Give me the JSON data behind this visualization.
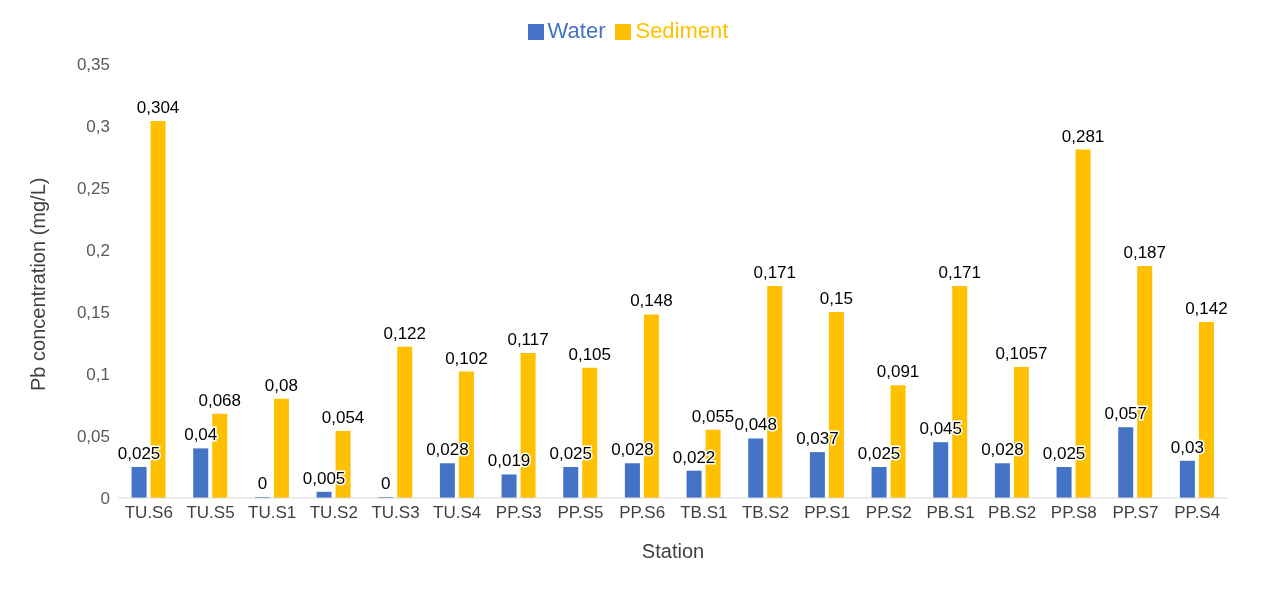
{
  "chart_data": {
    "type": "bar",
    "xlabel": "Station",
    "ylabel": "Pb concentration  (mg/L)",
    "categories": [
      "TU.S6",
      "TU.S5",
      "TU.S1",
      "TU.S2",
      "TU.S3",
      "TU.S4",
      "PP.S3",
      "PP.S5",
      "PP.S6",
      "TB.S1",
      "TB.S2",
      "PP.S1",
      "PP.S2",
      "PB.S1",
      "PB.S2",
      "PP.S8",
      "PP.S7",
      "PP.S4"
    ],
    "series": [
      {
        "name": "Water",
        "color": "#4472c4",
        "values": [
          0.025,
          0.04,
          0,
          0.005,
          0,
          0.028,
          0.019,
          0.025,
          0.028,
          0.022,
          0.048,
          0.037,
          0.025,
          0.045,
          0.028,
          0.025,
          0.057,
          0.03
        ],
        "value_labels": [
          "0,025",
          "0,04",
          "0",
          "0,005",
          "0",
          "0,028",
          "0,019",
          "0,025",
          "0,028",
          "0,022",
          "0,048",
          "0,037",
          "0,025",
          "0,045",
          "0,028",
          "0,025",
          "0,057",
          "0,03"
        ]
      },
      {
        "name": "Sediment",
        "color": "#ffc000",
        "values": [
          0.304,
          0.068,
          0.08,
          0.054,
          0.122,
          0.102,
          0.117,
          0.105,
          0.148,
          0.055,
          0.171,
          0.15,
          0.091,
          0.171,
          0.1057,
          0.281,
          0.187,
          0.142
        ],
        "value_labels": [
          "0,304",
          "0,068",
          "0,08",
          "0,054",
          "0,122",
          "0,102",
          "0,117",
          "0,105",
          "0,148",
          "0,055",
          "0,171",
          "0,15",
          "0,091",
          "0,171",
          "0,1057",
          "0,281",
          "0,187",
          "0,142"
        ]
      }
    ],
    "ylim": [
      0,
      0.35
    ],
    "yticks": [
      {
        "value": 0,
        "label": "0"
      },
      {
        "value": 0.05,
        "label": "0,05"
      },
      {
        "value": 0.1,
        "label": "0,1"
      },
      {
        "value": 0.15,
        "label": "0,15"
      },
      {
        "value": 0.2,
        "label": "0,2"
      },
      {
        "value": 0.25,
        "label": "0,25"
      },
      {
        "value": 0.3,
        "label": "0,3"
      },
      {
        "value": 0.35,
        "label": "0,35"
      }
    ],
    "grid": false,
    "legend": "top"
  }
}
